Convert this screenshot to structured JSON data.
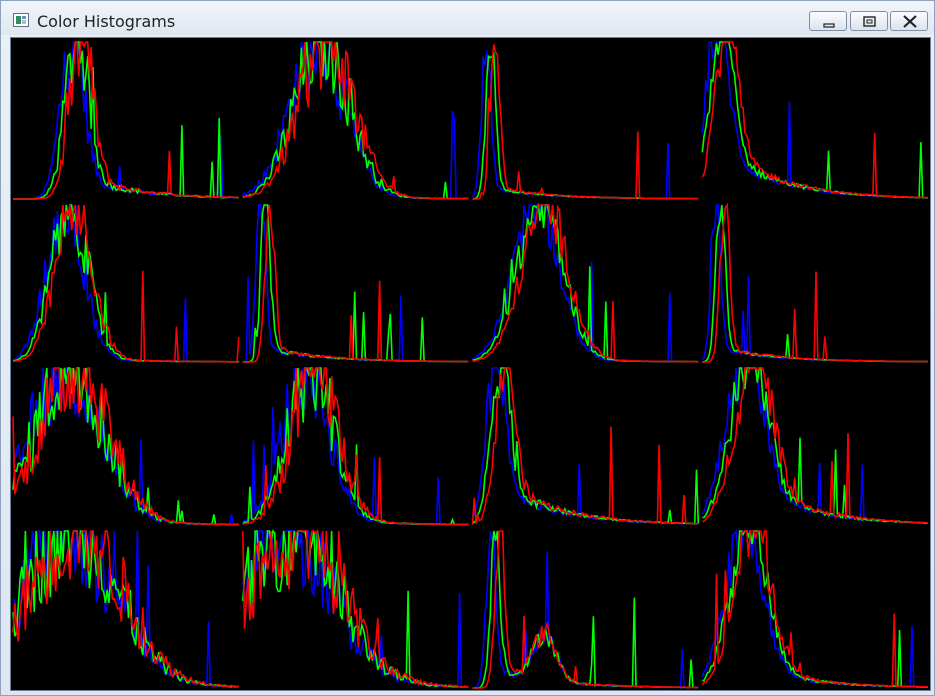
{
  "window": {
    "title": "Color Histograms",
    "icon": "opencv-window-icon",
    "controls": [
      "minimize-icon",
      "maximize-icon",
      "close-icon"
    ]
  },
  "colors": {
    "background": "#000000",
    "red": "#ff0000",
    "green": "#00ff00",
    "blue": "#0000ff",
    "titlebar": "#dfe7f1"
  },
  "chart_data": {
    "type": "line",
    "grid": false,
    "layout": "4x4 grid of histogram panels",
    "series_colors": [
      "#0000ff",
      "#00ff00",
      "#ff0000"
    ],
    "panels": [
      {
        "row": 0,
        "col": 0,
        "shape": "sharp peak near low-mid values with long thin tail"
      },
      {
        "row": 0,
        "col": 1,
        "shape": "dense cluster of spikes in mid range"
      },
      {
        "row": 0,
        "col": 2,
        "shape": "very sharp peak at low values, flat tail"
      },
      {
        "row": 0,
        "col": 3,
        "shape": "high peak at low values with long decaying tail"
      },
      {
        "row": 1,
        "col": 0,
        "shape": "peak in lower-mid range"
      },
      {
        "row": 1,
        "col": 1,
        "shape": "sharp narrow spike at low values"
      },
      {
        "row": 1,
        "col": 2,
        "shape": "broad bell curve centered mid range"
      },
      {
        "row": 1,
        "col": 3,
        "shape": "sharp narrow spike at low values"
      },
      {
        "row": 2,
        "col": 0,
        "shape": "noisy broad distribution across lower half"
      },
      {
        "row": 2,
        "col": 1,
        "shape": "tall spike with noisy spread"
      },
      {
        "row": 2,
        "col": 2,
        "shape": "peak at low values with long tail"
      },
      {
        "row": 2,
        "col": 3,
        "shape": "broad peak with long noisy tail"
      },
      {
        "row": 3,
        "col": 0,
        "shape": "noisy wide distribution"
      },
      {
        "row": 3,
        "col": 1,
        "shape": "noisy wide distribution"
      },
      {
        "row": 3,
        "col": 2,
        "shape": "sharp low spike plus secondary hump"
      },
      {
        "row": 3,
        "col": 3,
        "shape": "broad peak in lower-mid range"
      }
    ]
  }
}
